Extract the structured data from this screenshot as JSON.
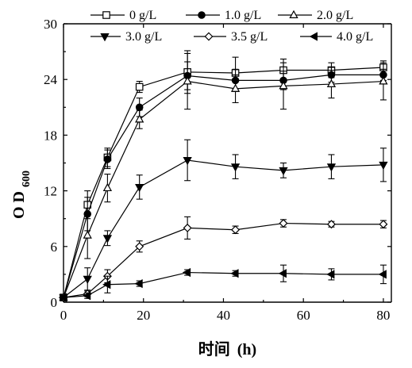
{
  "chart_data": {
    "type": "line",
    "xlabel": "时间",
    "xlabel_unit": "(h)",
    "ylabel_main": "O D",
    "ylabel_sub": "600",
    "xlim": [
      0,
      82
    ],
    "ylim": [
      0,
      30
    ],
    "xticks": [
      0,
      20,
      40,
      60,
      80
    ],
    "yticks": [
      0,
      6,
      12,
      18,
      24,
      30
    ],
    "grid": false,
    "legend_position": "top",
    "x": [
      0,
      6,
      11,
      19,
      31,
      43,
      55,
      67,
      80
    ],
    "series": [
      {
        "name": "0 g/L",
        "marker": "square-open",
        "values": [
          0.5,
          10.5,
          15.6,
          23.2,
          24.8,
          24.7,
          25.0,
          25.0,
          25.3
        ],
        "errors": [
          0.3,
          1.5,
          1.0,
          0.6,
          2.3,
          1.7,
          1.2,
          0.8,
          0.7
        ]
      },
      {
        "name": "1.0 g/L",
        "marker": "circle-filled",
        "values": [
          0.5,
          9.5,
          15.4,
          21.0,
          24.4,
          23.9,
          23.9,
          24.5,
          24.5
        ],
        "errors": [
          0.3,
          1.8,
          1.0,
          1.0,
          1.5,
          1.2,
          1.0,
          0.8,
          0.6
        ]
      },
      {
        "name": "2.0 g/L",
        "marker": "triangle-up-open",
        "values": [
          0.5,
          7.2,
          12.3,
          19.7,
          23.8,
          23.0,
          23.3,
          23.5,
          23.8
        ],
        "errors": [
          0.3,
          2.5,
          1.5,
          1.0,
          3.0,
          1.5,
          2.5,
          1.5,
          2.0
        ]
      },
      {
        "name": "3.0 g/L",
        "marker": "triangle-down-filled",
        "values": [
          0.5,
          2.5,
          6.9,
          12.4,
          15.3,
          14.6,
          14.2,
          14.6,
          14.8
        ],
        "errors": [
          0.3,
          1.2,
          0.8,
          1.3,
          2.2,
          1.3,
          0.8,
          1.3,
          1.8
        ]
      },
      {
        "name": "3.5 g/L",
        "marker": "diamond-open",
        "values": [
          0.5,
          0.9,
          2.8,
          6.0,
          8.0,
          7.8,
          8.5,
          8.4,
          8.4
        ],
        "errors": [
          0.2,
          0.3,
          0.7,
          0.6,
          1.2,
          0.4,
          0.4,
          0.3,
          0.4
        ]
      },
      {
        "name": "4.0 g/L",
        "marker": "triangle-left-filled",
        "values": [
          0.5,
          0.7,
          1.9,
          2.0,
          3.2,
          3.1,
          3.1,
          3.0,
          3.0
        ],
        "errors": [
          0.2,
          0.3,
          0.9,
          0.3,
          0.3,
          0.3,
          0.9,
          0.6,
          1.0
        ]
      }
    ]
  }
}
